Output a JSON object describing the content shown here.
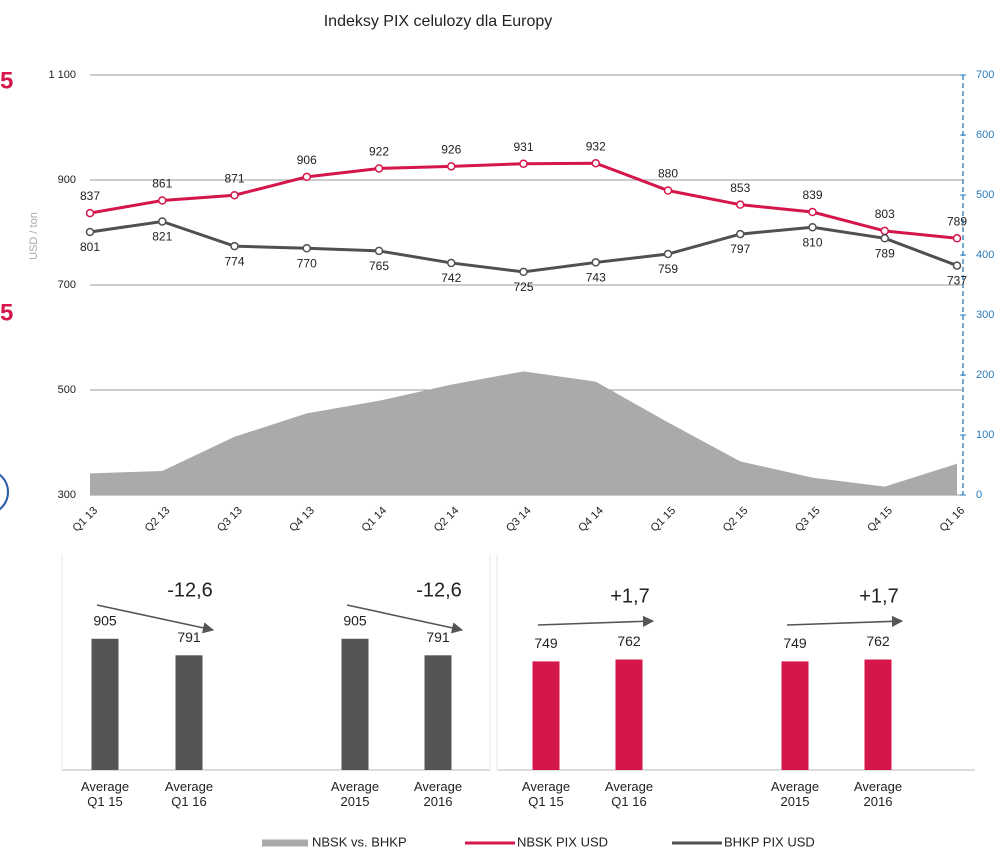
{
  "side_marks": [
    "5",
    "5"
  ],
  "chart_data": [
    {
      "type": "line",
      "title": "Indeksy PIX celulozy dla Europy",
      "y_label": "USD / ton",
      "categories": [
        "Q1 13",
        "Q2 13",
        "Q3 13",
        "Q4 13",
        "Q1 14",
        "Q2 14",
        "Q3 14",
        "Q4 14",
        "Q1 15",
        "Q2 15",
        "Q3 15",
        "Q4 15",
        "Q1 16"
      ],
      "ylim": [
        300,
        1100
      ],
      "yticks": [
        300,
        500,
        700,
        900,
        {
          "value": 1100,
          "label": "1 100"
        }
      ],
      "y2lim": [
        0,
        700
      ],
      "y2ticks": [
        0,
        100,
        200,
        300,
        400,
        500,
        600,
        700
      ],
      "grid": true,
      "legend": "bottom",
      "series": [
        {
          "name": "NBSK vs. BHKP",
          "type": "area",
          "axis": "y2",
          "color": "#aaaaaa",
          "values": [
            36,
            40,
            97,
            136,
            157,
            184,
            206,
            189,
            121,
            56,
            29,
            14,
            52
          ]
        },
        {
          "name": "NBSK PIX USD",
          "color": "#d4164a",
          "values": [
            837,
            861,
            871,
            906,
            922,
            926,
            931,
            932,
            880,
            853,
            839,
            803,
            789
          ]
        },
        {
          "name": "BHKP PIX USD",
          "color": "#505050",
          "values": [
            801,
            821,
            774,
            770,
            765,
            742,
            725,
            743,
            759,
            797,
            810,
            789,
            737
          ]
        }
      ]
    },
    {
      "type": "bar",
      "categories": [
        "Average Q1 15",
        "Average Q1 16"
      ],
      "values": [
        905,
        791
      ],
      "color": "#555555",
      "ylim": [
        0,
        1000
      ],
      "change": "-12,6"
    },
    {
      "type": "bar",
      "categories": [
        "Average 2015",
        "Average 2016"
      ],
      "values": [
        905,
        791
      ],
      "color": "#555555",
      "ylim": [
        0,
        1000
      ],
      "change": "-12,6"
    },
    {
      "type": "bar",
      "categories": [
        "Average Q1 15",
        "Average Q1 16"
      ],
      "values": [
        749,
        762
      ],
      "color": "#d4164a",
      "ylim": [
        0,
        1000
      ],
      "change": "+1,7"
    },
    {
      "type": "bar",
      "categories": [
        "Average 2015",
        "Average 2016"
      ],
      "values": [
        749,
        762
      ],
      "color": "#d4164a",
      "ylim": [
        0,
        1000
      ],
      "change": "+1,7"
    }
  ]
}
